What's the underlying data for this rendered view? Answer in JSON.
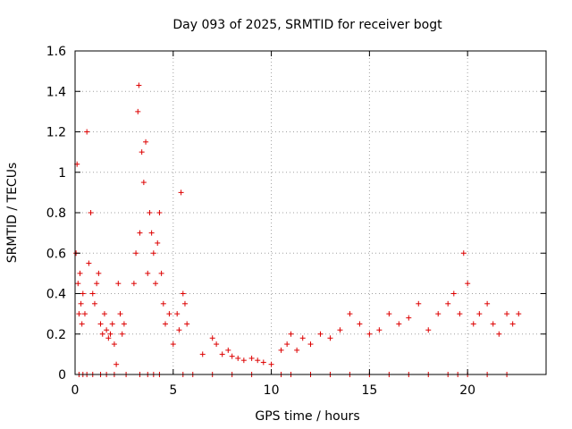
{
  "chart_data": {
    "type": "scatter",
    "title": "Day 093 of 2025, SRMTID for receiver bogt",
    "xlabel": "GPS time / hours",
    "ylabel": "SRMTID / TECUs",
    "xlim": [
      0,
      24
    ],
    "ylim": [
      0,
      1.6
    ],
    "xticks": [
      0,
      5,
      10,
      15,
      20
    ],
    "xtick_labels": [
      "0",
      "5",
      "10",
      "15",
      "20"
    ],
    "yticks": [
      0,
      0.2,
      0.4,
      0.6,
      0.8,
      1,
      1.2,
      1.4,
      1.6
    ],
    "ytick_labels": [
      "0",
      "0.2",
      "0.4",
      "0.6",
      "0.8",
      "1",
      "1.2",
      "1.4",
      "1.6"
    ],
    "grid": true,
    "marker": "+",
    "series": [
      {
        "name": "SRMTID",
        "color": "#dd0000",
        "x": [
          0.05,
          0.1,
          0.15,
          0.2,
          0.25,
          0.3,
          0.35,
          0.4,
          0.5,
          0.6,
          0.7,
          0.8,
          0.9,
          1.0,
          1.1,
          1.2,
          1.3,
          1.4,
          1.5,
          1.6,
          1.7,
          1.8,
          1.9,
          2.0,
          2.1,
          2.2,
          2.3,
          2.4,
          2.5,
          3.0,
          3.1,
          3.2,
          3.25,
          3.3,
          3.4,
          3.5,
          3.6,
          3.7,
          3.8,
          3.9,
          4.0,
          4.1,
          4.2,
          4.3,
          4.4,
          4.5,
          4.6,
          4.8,
          5.0,
          5.2,
          5.3,
          5.4,
          5.5,
          5.6,
          5.7,
          6.5,
          7.0,
          7.2,
          7.5,
          7.8,
          8.0,
          8.3,
          8.6,
          9.0,
          9.3,
          9.6,
          10.0,
          10.5,
          10.8,
          11.0,
          11.3,
          11.6,
          12.0,
          12.5,
          13.0,
          13.5,
          14.0,
          14.5,
          15.0,
          15.5,
          16.0,
          16.5,
          17.0,
          17.5,
          18.0,
          18.5,
          19.0,
          19.3,
          19.6,
          19.8,
          20.0,
          20.3,
          20.6,
          21.0,
          21.3,
          21.6,
          22.0,
          22.3,
          22.6,
          0.2,
          0.4,
          0.6,
          0.9,
          1.3,
          1.6,
          2.0,
          2.6,
          3.3,
          3.7,
          4.0,
          4.3,
          5.5,
          6.0,
          7.0,
          8.0,
          9.0,
          10.5,
          11.0,
          12.0,
          13.0,
          14.0,
          15.0,
          16.0,
          17.0,
          18.0,
          19.0,
          19.5,
          20.0,
          21.0,
          22.0
        ],
        "y": [
          0.6,
          1.04,
          0.45,
          0.3,
          0.5,
          0.35,
          0.25,
          0.4,
          0.3,
          1.2,
          0.55,
          0.8,
          0.4,
          0.35,
          0.45,
          0.5,
          0.25,
          0.2,
          0.3,
          0.22,
          0.18,
          0.2,
          0.25,
          0.15,
          0.05,
          0.45,
          0.3,
          0.2,
          0.25,
          0.45,
          0.6,
          1.3,
          1.43,
          0.7,
          1.1,
          0.95,
          1.15,
          0.5,
          0.8,
          0.7,
          0.6,
          0.45,
          0.65,
          0.8,
          0.5,
          0.35,
          0.25,
          0.3,
          0.15,
          0.3,
          0.22,
          0.9,
          0.4,
          0.35,
          0.25,
          0.1,
          0.18,
          0.15,
          0.1,
          0.12,
          0.09,
          0.08,
          0.07,
          0.08,
          0.07,
          0.06,
          0.05,
          0.12,
          0.15,
          0.2,
          0.12,
          0.18,
          0.15,
          0.2,
          0.18,
          0.22,
          0.3,
          0.25,
          0.2,
          0.22,
          0.3,
          0.25,
          0.28,
          0.35,
          0.22,
          0.3,
          0.35,
          0.4,
          0.3,
          0.6,
          0.45,
          0.25,
          0.3,
          0.35,
          0.25,
          0.2,
          0.3,
          0.25,
          0.3,
          0,
          0,
          0,
          0,
          0,
          0,
          0,
          0,
          0,
          0,
          0,
          0,
          0,
          0,
          0,
          0,
          0,
          0,
          0,
          0,
          0,
          0,
          0,
          0,
          0,
          0,
          0,
          0,
          0,
          0,
          0
        ]
      }
    ]
  }
}
